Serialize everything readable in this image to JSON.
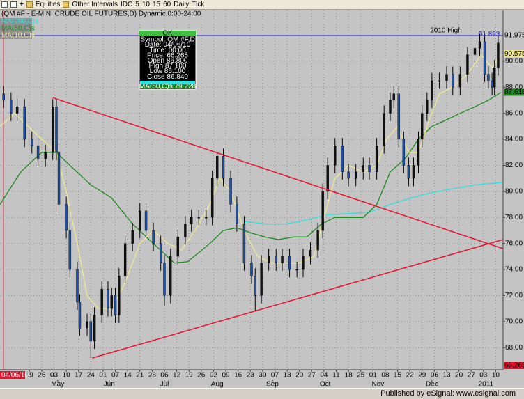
{
  "toolbar": {
    "items": [
      "Equities",
      "Other Intervals",
      "IDC",
      "5",
      "10",
      "15",
      "60",
      "Daily",
      "Tick"
    ]
  },
  "status": "Published by eSignal: www.esignal.com",
  "chart_data": {
    "type": "candlestick",
    "title": "(QM #F - E-MINI CRUDE OIL FUTURES,D) Dynamic,0:00-24:00",
    "cursor_date": "04/06/10",
    "x": [
      -0.1,
      0.5,
      1.0,
      1.6,
      2.2,
      2.7,
      3.3,
      3.9,
      4.2,
      4.4,
      5.0,
      5.3,
      5.9,
      6.1,
      6.7,
      7.0,
      7.3,
      7.9,
      8.4,
      8.7,
      9.0,
      9.3,
      9.8,
      10.4,
      11.0,
      11.5,
      12.1,
      12.7,
      13.0,
      13.5,
      14.1,
      14.7,
      15.2,
      15.8,
      16.4,
      16.9,
      17.3,
      17.8,
      18.4,
      18.9,
      19.5,
      20.1,
      20.4,
      20.9,
      21.5,
      22.1,
      22.6,
      23.2,
      23.8,
      24.3,
      24.9,
      25.5,
      25.9,
      26.3,
      26.9,
      27.5,
      28.0,
      28.6,
      29.2,
      29.7,
      30.3,
      30.9,
      31.4,
      31.7,
      32.1,
      32.5,
      32.9,
      33.3,
      33.7,
      34.0,
      34.4,
      34.8,
      35.4,
      36.0,
      36.5,
      37.1,
      37.7,
      38.3,
      38.7,
      39.1,
      39.4,
      39.7,
      39.9,
      40.2
    ],
    "open": [
      87.5,
      87,
      86,
      86.5,
      84,
      83.5,
      82.5,
      83,
      86.5,
      83,
      79,
      77,
      74,
      71.5,
      69.5,
      70,
      68.5,
      70.5,
      72.5,
      71,
      72,
      70.5,
      73.5,
      76,
      77,
      78.5,
      77,
      76,
      74.5,
      72,
      75,
      76.5,
      77.5,
      78,
      78,
      78,
      81,
      82.7,
      81,
      79,
      77.5,
      74.5,
      73.5,
      72,
      74.5,
      75,
      74.5,
      75,
      74,
      74,
      75,
      75.5,
      77,
      80,
      82,
      83.5,
      81.5,
      81,
      81.5,
      82,
      81.5,
      83.5,
      86,
      87,
      87.5,
      84,
      82,
      81,
      82,
      84,
      86,
      87,
      88.5,
      88.5,
      89,
      88,
      89,
      90.5,
      91,
      91.5,
      89,
      88.5,
      88,
      89.5
    ],
    "high": [
      88.1,
      87.6,
      87.1,
      87.1,
      84.6,
      84.1,
      83.6,
      87.1,
      87.1,
      83.6,
      79.6,
      77.6,
      74.6,
      72.1,
      70.6,
      70.6,
      71.1,
      73.1,
      73.1,
      72.6,
      72.6,
      74.1,
      76.6,
      77.6,
      79.1,
      79.1,
      77.6,
      76.6,
      75.1,
      75.6,
      77.1,
      78.1,
      78.6,
      78.6,
      78.6,
      81.6,
      83.0,
      83.3,
      81.6,
      79.6,
      78.1,
      75.1,
      74.1,
      75.1,
      75.6,
      75.6,
      75.6,
      75.6,
      74.6,
      75.6,
      76.1,
      77.6,
      80.6,
      82.6,
      84.1,
      84.1,
      82.1,
      82.1,
      82.6,
      82.6,
      84.1,
      86.6,
      87.6,
      88.1,
      88.1,
      84.6,
      82.6,
      82.6,
      84.6,
      86.6,
      87.6,
      89.1,
      89.1,
      89.6,
      89.6,
      89.6,
      91.1,
      91.6,
      92.1,
      92.1,
      89.6,
      89.1,
      90.1,
      92.0
    ],
    "low": [
      86.4,
      85.4,
      85.4,
      83.4,
      82.9,
      81.9,
      81.9,
      82.4,
      82.4,
      78.4,
      76.4,
      73.4,
      70.9,
      68.9,
      68.9,
      67.2,
      67.9,
      69.9,
      70.4,
      70.4,
      69.9,
      69.9,
      72.9,
      75.4,
      76.4,
      76.4,
      75.4,
      73.9,
      71.2,
      71.4,
      74.4,
      75.9,
      76.9,
      77.4,
      77.4,
      77.4,
      80.4,
      80.4,
      78.4,
      76.9,
      73.9,
      72.9,
      70.8,
      71.4,
      73.9,
      73.9,
      73.9,
      73.4,
      73.4,
      73.4,
      74.4,
      74.9,
      76.4,
      79.4,
      81.4,
      80.9,
      80.4,
      80.4,
      80.9,
      80.9,
      80.9,
      82.9,
      85.4,
      86.4,
      83.4,
      81.4,
      80.4,
      80.4,
      81.4,
      83.4,
      85.4,
      86.4,
      87.9,
      87.9,
      87.4,
      87.4,
      88.4,
      89.9,
      90.4,
      88.4,
      87.9,
      87.4,
      87.4,
      88.9
    ],
    "close": [
      87,
      86,
      86.5,
      84,
      83.5,
      82.5,
      83,
      86.5,
      83,
      79,
      77,
      74,
      71.5,
      69.5,
      70,
      68.5,
      70.5,
      72.5,
      71,
      72,
      70.5,
      73.5,
      76,
      77,
      78.5,
      77,
      76,
      74.5,
      72,
      75,
      76.5,
      77.5,
      78,
      78,
      78,
      81,
      82.7,
      81,
      79,
      77.5,
      74.5,
      73.5,
      72,
      74.5,
      75,
      74.5,
      75,
      74,
      74,
      75,
      75.5,
      77,
      80,
      82,
      83.5,
      81.5,
      81,
      81.5,
      82,
      81.5,
      83.5,
      86,
      87,
      87.5,
      84,
      82,
      81,
      82,
      84,
      86,
      87,
      88.5,
      88.5,
      89,
      88,
      89,
      90.5,
      91,
      91.5,
      89,
      88.5,
      88,
      89.5,
      91.4
    ],
    "up_color": "#101010",
    "down_color": "#1f4fa0",
    "series": [
      {
        "name": "MA(200,C)s",
        "color": "#30e0e0",
        "x": [
          19.5,
          21.2,
          22.9,
          24.6,
          26.3,
          28.0,
          29.7,
          31.4,
          33.1,
          34.8,
          36.5,
          38.3,
          40.6
        ],
        "values": [
          77.7,
          77.5,
          77.5,
          77.8,
          78.2,
          78.3,
          78.4,
          79.0,
          79.5,
          79.9,
          80.2,
          80.5,
          80.7
        ]
      },
      {
        "name": "MA(50,C)s",
        "color": "#1c8a1c",
        "x": [
          -0.4,
          1.3,
          3.0,
          4.2,
          5.3,
          7.0,
          8.7,
          10.4,
          12.1,
          13.8,
          14.9,
          16.7,
          17.8,
          18.9,
          20.1,
          21.2,
          22.3,
          23.5,
          24.6,
          25.8,
          26.9,
          28.0,
          29.2,
          30.3,
          31.4,
          32.6,
          33.7,
          34.8,
          36.0,
          37.1,
          38.3,
          39.4,
          40.4
        ],
        "values": [
          79,
          81.5,
          83,
          83,
          82,
          80.5,
          79.5,
          77.5,
          76,
          74.5,
          74.6,
          76,
          77,
          77.2,
          76.8,
          76.5,
          76.3,
          76.5,
          76.5,
          77.5,
          78,
          78,
          78,
          79,
          81.5,
          82.5,
          84,
          85,
          85.5,
          86,
          86.5,
          87,
          87.6
        ]
      },
      {
        "name": "MA(10,C)s",
        "color": "#f0e890",
        "x": [
          -0.4,
          0.8,
          1.9,
          3.0,
          4.2,
          5.0,
          5.9,
          6.7,
          7.6,
          8.7,
          9.8,
          11.0,
          12.1,
          13.3,
          14.4,
          15.5,
          16.7,
          17.5,
          18.4,
          19.5,
          20.6,
          21.8,
          22.9,
          24.0,
          25.2,
          26.0,
          26.9,
          28.0,
          29.2,
          30.3,
          31.1,
          32.0,
          32.9,
          33.7,
          34.6,
          35.4,
          36.5,
          37.7,
          38.8,
          39.7,
          40.4
        ],
        "values": [
          85,
          86,
          85,
          84,
          83,
          80,
          76,
          72,
          71,
          71,
          73,
          76,
          77,
          76,
          75.5,
          77,
          79,
          81,
          80,
          77,
          75,
          74.5,
          74.5,
          74.5,
          75,
          78,
          81,
          82,
          81.5,
          82,
          84,
          85,
          83,
          83,
          85.5,
          87.5,
          88,
          89,
          90.5,
          89.5,
          90.5
        ]
      }
    ],
    "trendlines": [
      {
        "color": "#e8102c",
        "x": [
          3.9,
          40.6
        ],
        "values": [
          87.2,
          75.6
        ]
      },
      {
        "color": "#e8102c",
        "x": [
          7.1,
          40.6
        ],
        "values": [
          67.2,
          76.3
        ]
      }
    ],
    "high_line": {
      "value": 91.975,
      "label": "2010 High",
      "color": "#2020c0"
    },
    "annotation": {
      "text": "91.893",
      "x": 38.6,
      "value": 91.893
    },
    "price_markers": [
      {
        "value": 91.975,
        "label": "91.975",
        "color": "#c8c8c8"
      },
      {
        "value": 90.575,
        "label": "90.575",
        "color": "#f0e890"
      },
      {
        "value": 87.618,
        "label": "87.618",
        "color": "#1c8a1c"
      },
      {
        "value": 66.265,
        "label": "66.265",
        "color": "#e8102c"
      }
    ],
    "xlim": [
      -0.4,
      40.6
    ],
    "ylim": [
      66.3,
      93.9
    ],
    "yticks": [
      {
        "value": 68,
        "label": "68.00"
      },
      {
        "value": 70,
        "label": "70.00"
      },
      {
        "value": 72,
        "label": "72.00"
      },
      {
        "value": 74,
        "label": "74.00"
      },
      {
        "value": 76,
        "label": "76.00"
      },
      {
        "value": 78,
        "label": "78.00"
      },
      {
        "value": 80,
        "label": "80.00"
      },
      {
        "value": 82,
        "label": "82.00"
      },
      {
        "value": 84,
        "label": "84.00"
      },
      {
        "value": 86,
        "label": "86.00"
      },
      {
        "value": 88,
        "label": "88.00"
      },
      {
        "value": 90,
        "label": "90.00"
      }
    ],
    "xticks": [
      {
        "value": 2,
        "label": "19"
      },
      {
        "value": 3,
        "label": "26"
      },
      {
        "value": 4,
        "label": "03"
      },
      {
        "value": 5,
        "label": "10"
      },
      {
        "value": 6,
        "label": "17"
      },
      {
        "value": 7,
        "label": "24"
      },
      {
        "value": 8,
        "label": "01"
      },
      {
        "value": 9,
        "label": "07"
      },
      {
        "value": 10,
        "label": "14"
      },
      {
        "value": 11,
        "label": "21"
      },
      {
        "value": 12,
        "label": "28"
      },
      {
        "value": 13,
        "label": "06"
      },
      {
        "value": 14,
        "label": "12"
      },
      {
        "value": 15,
        "label": "19"
      },
      {
        "value": 16,
        "label": "26"
      },
      {
        "value": 17,
        "label": "02"
      },
      {
        "value": 18,
        "label": "09"
      },
      {
        "value": 19,
        "label": "16"
      },
      {
        "value": 20,
        "label": "23"
      },
      {
        "value": 21,
        "label": "30"
      },
      {
        "value": 22,
        "label": "07"
      },
      {
        "value": 23,
        "label": "13"
      },
      {
        "value": 24,
        "label": "20"
      },
      {
        "value": 25,
        "label": "27"
      },
      {
        "value": 26,
        "label": "04"
      },
      {
        "value": 27,
        "label": "11"
      },
      {
        "value": 28,
        "label": "18"
      },
      {
        "value": 29,
        "label": "25"
      },
      {
        "value": 30,
        "label": "01"
      },
      {
        "value": 31,
        "label": "08"
      },
      {
        "value": 32,
        "label": "15"
      },
      {
        "value": 33,
        "label": "22"
      },
      {
        "value": 34,
        "label": "29"
      },
      {
        "value": 35,
        "label": "06"
      },
      {
        "value": 36,
        "label": "13"
      },
      {
        "value": 37,
        "label": "20"
      },
      {
        "value": 38,
        "label": "27"
      },
      {
        "value": 39,
        "label": "03"
      },
      {
        "value": 40,
        "label": "10"
      }
    ],
    "month_ticks": [
      {
        "value": 4.3,
        "label": "May"
      },
      {
        "value": 8.5,
        "label": "Jun"
      },
      {
        "value": 13.0,
        "label": "Jul"
      },
      {
        "value": 17.3,
        "label": "Aug"
      },
      {
        "value": 21.8,
        "label": "Sep"
      },
      {
        "value": 26.1,
        "label": "Oct"
      },
      {
        "value": 30.4,
        "label": "Nov"
      },
      {
        "value": 34.8,
        "label": "Dec"
      },
      {
        "value": 39.2,
        "label": "2011"
      }
    ],
    "grid": true,
    "info_box": {
      "header": "OK",
      "rows": [
        "Symbol: QM #F,D",
        "Date: 04/06/10",
        "Time: 00:00",
        "Price: 66.265",
        "Open 86.800",
        "High 87.100",
        "Low 86.100",
        "Close 86.840"
      ],
      "ma_row": "MA(50,C)s 79.228"
    }
  }
}
